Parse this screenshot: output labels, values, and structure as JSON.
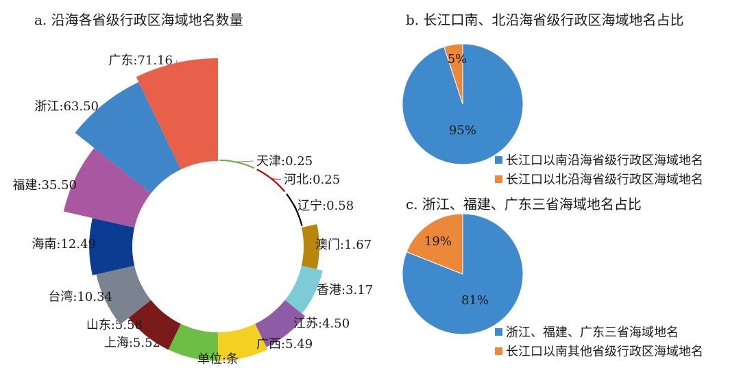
{
  "chart_data": [
    {
      "type": "pie",
      "title": "a. 沿海各省级行政区海域地名数量",
      "unit_note": "单位:条",
      "categories": [
        "天津",
        "河北",
        "辽宁",
        "澳门",
        "香港",
        "江苏",
        "广西",
        "上海",
        "山东",
        "台湾",
        "海南",
        "福建",
        "浙江",
        "广东"
      ],
      "values": [
        0.25,
        0.25,
        0.58,
        1.67,
        3.17,
        4.5,
        5.49,
        5.52,
        5.58,
        10.34,
        12.49,
        35.5,
        63.5,
        71.16
      ],
      "labels": [
        "天津:0.25",
        "河北:0.25",
        "辽宁:0.58",
        "澳门:1.67",
        "香港:3.17",
        "江苏:4.50",
        "广西:5.49",
        "上海:5.52",
        "山东:5.58",
        "台湾:10.34",
        "海南:12.49",
        "福建:35.50",
        "浙江:63.50",
        "广东:71.16"
      ],
      "colors": [
        "#70AD47",
        "#C00000",
        "#000000",
        "#B8860B",
        "#7CCBD6",
        "#8E5BA6",
        "#F2D024",
        "#6CBE45",
        "#7B1A1A",
        "#7A8491",
        "#0A3D91",
        "#A857A0",
        "#3E86C8",
        "#E8604A"
      ]
    },
    {
      "type": "pie",
      "title": "b. 长江口南、北沿海省级行政区海域地名占比",
      "categories": [
        "长江口以南沿海省级行政区海域地名",
        "长江口以北沿海省级行政区海域地名"
      ],
      "values": [
        95,
        5
      ],
      "labels": [
        "95%",
        "5%"
      ],
      "colors": [
        "#3E8ACC",
        "#EC883A"
      ]
    },
    {
      "type": "pie",
      "title": "c. 浙江、福建、广东三省海域地名占比",
      "categories": [
        "浙江、福建、广东三省海域地名",
        "长江口以南其他省级行政区海域地名"
      ],
      "values": [
        81,
        19
      ],
      "labels": [
        "81%",
        "19%"
      ],
      "colors": [
        "#3E8ACC",
        "#EC883A"
      ]
    }
  ]
}
